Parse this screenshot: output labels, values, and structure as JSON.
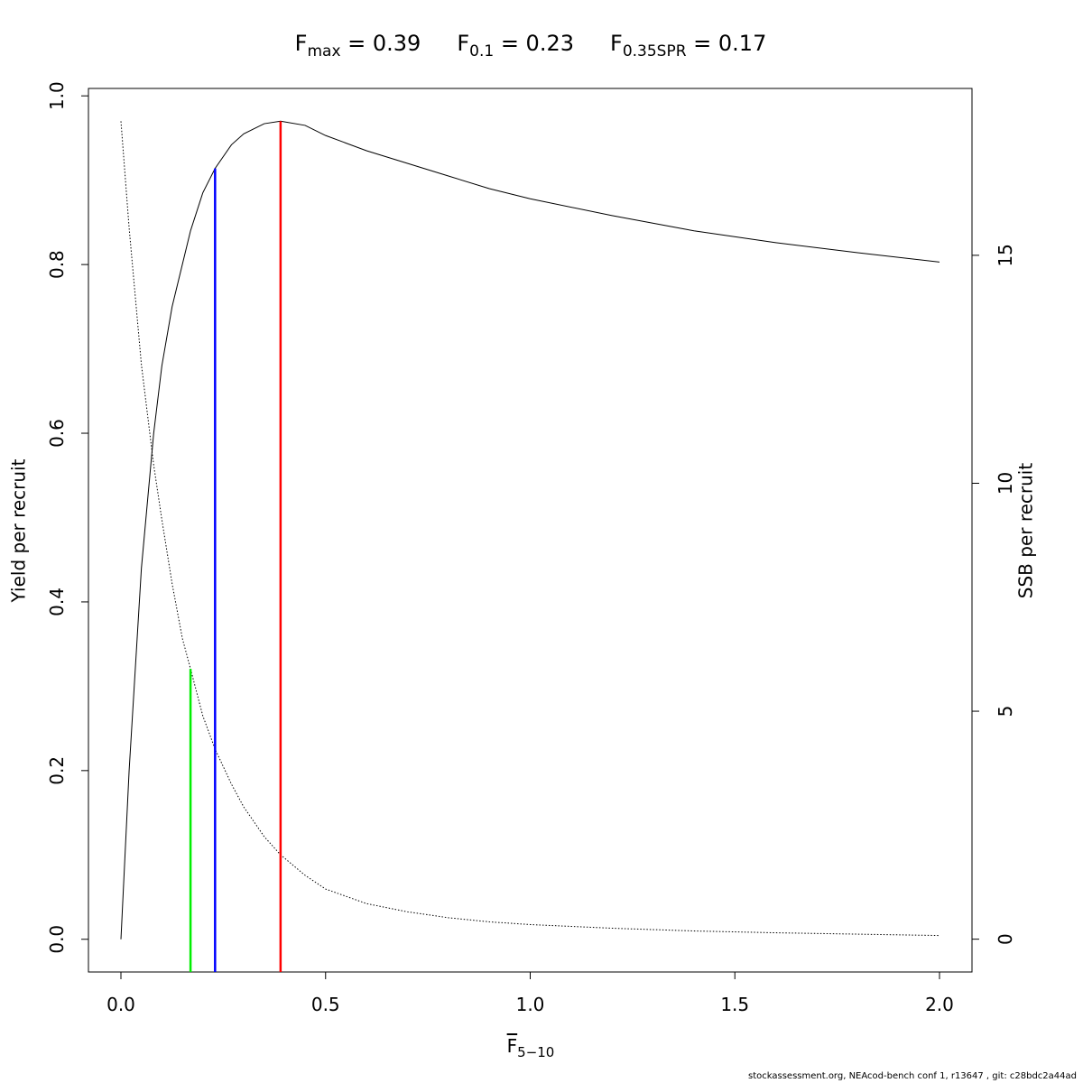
{
  "chart_data": {
    "type": "line",
    "title_parts": [
      {
        "base": "F",
        "sub": "max",
        "rest": " = 0.39"
      },
      {
        "base": "F",
        "sub": "0.1",
        "rest": " = 0.23"
      },
      {
        "base": "F",
        "sub": "0.35SPR",
        "rest": " = 0.17"
      }
    ],
    "x_label": {
      "base": "F",
      "sub": "5−10"
    },
    "y_label": "Yield per recruit",
    "y2_label": "SSB per recruit",
    "footer": "stockassessment.org, NEAcod-bench conf 1, r13647 , git: c28bdc2a44ad",
    "x": [
      0,
      0.02,
      0.05,
      0.08,
      0.1,
      0.125,
      0.15,
      0.17,
      0.2,
      0.23,
      0.27,
      0.3,
      0.35,
      0.39,
      0.45,
      0.5,
      0.6,
      0.7,
      0.8,
      0.9,
      1.0,
      1.2,
      1.4,
      1.6,
      1.8,
      2.0
    ],
    "series": [
      {
        "name": "Yield per recruit",
        "color": "#000000",
        "dash": "solid",
        "values": [
          0,
          0.2,
          0.44,
          0.6,
          0.68,
          0.75,
          0.8,
          0.84,
          0.885,
          0.914,
          0.942,
          0.955,
          0.967,
          0.97,
          0.965,
          0.953,
          0.935,
          0.92,
          0.905,
          0.89,
          0.878,
          0.858,
          0.84,
          0.826,
          0.814,
          0.803
        ]
      },
      {
        "name": "SSB per recruit",
        "color": "#000000",
        "dash": "dotted",
        "axis": "y2",
        "values": [
          17.94,
          15.6,
          12.6,
          10.4,
          9.2,
          7.8,
          6.6,
          5.93,
          4.9,
          4.17,
          3.4,
          2.9,
          2.25,
          1.85,
          1.4,
          1.1,
          0.78,
          0.6,
          0.47,
          0.38,
          0.32,
          0.24,
          0.18,
          0.14,
          0.11,
          0.08
        ]
      }
    ],
    "reference_lines": [
      {
        "x": 0.39,
        "top": 0.97,
        "color": "#ff0000"
      },
      {
        "x": 0.23,
        "top": 0.914,
        "color": "#0000ff"
      },
      {
        "x": 0.17,
        "top": 5.93,
        "color": "#00ee00",
        "axis": "y2"
      }
    ],
    "xlim": [
      -0.0794,
      2.0794
    ],
    "ylim": [
      -0.0388,
      1.0088
    ],
    "y2lim": [
      -0.72,
      18.66
    ],
    "xticks": [
      {
        "value": 0,
        "label": "0.0"
      },
      {
        "value": 0.5,
        "label": "0.5"
      },
      {
        "value": 1,
        "label": "1.0"
      },
      {
        "value": 1.5,
        "label": "1.5"
      },
      {
        "value": 2,
        "label": "2.0"
      }
    ],
    "yticks": [
      {
        "value": 0,
        "label": "0.0"
      },
      {
        "value": 0.2,
        "label": "0.2"
      },
      {
        "value": 0.4,
        "label": "0.4"
      },
      {
        "value": 0.6,
        "label": "0.6"
      },
      {
        "value": 0.8,
        "label": "0.8"
      },
      {
        "value": 1,
        "label": "1.0"
      }
    ],
    "y2ticks": [
      0,
      5,
      10,
      15
    ]
  }
}
